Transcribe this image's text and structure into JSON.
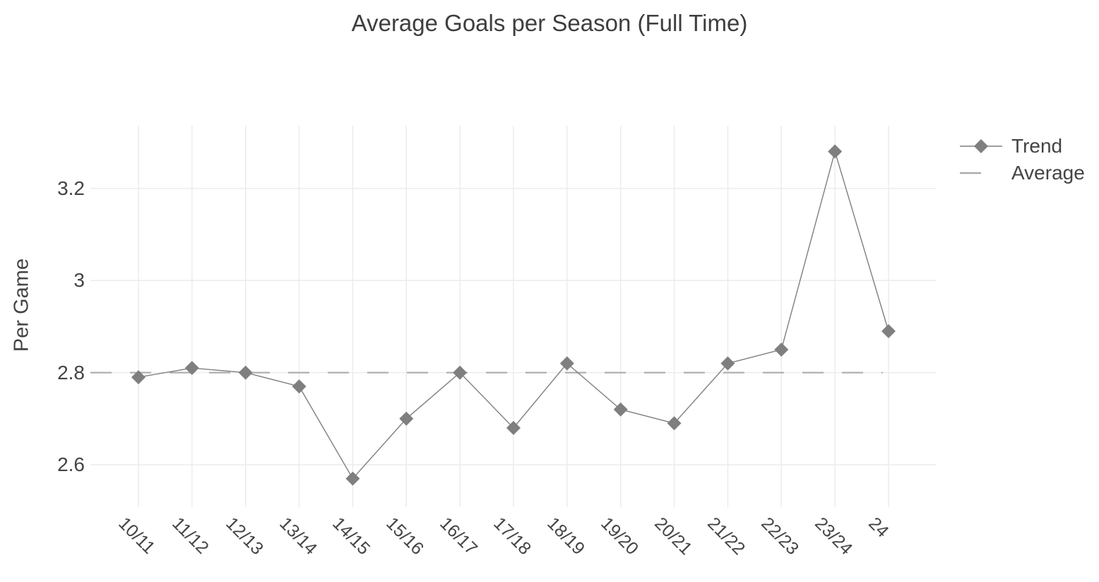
{
  "figure": {
    "background": "#ffffff",
    "text_color": "#444444",
    "title_color": "#3e3e3e",
    "grid_color": "#ebebeb"
  },
  "chart_data": {
    "type": "line",
    "title": "Average Goals per Season (Full Time)",
    "xlabel": "",
    "ylabel": "Per Game",
    "categories": [
      "10/11",
      "11/12",
      "12/13",
      "13/14",
      "14/15",
      "15/16",
      "16/17",
      "17/18",
      "18/19",
      "19/20",
      "20/21",
      "21/22",
      "22/23",
      "23/24",
      "24"
    ],
    "series": [
      {
        "name": "Trend",
        "type": "line+markers",
        "marker": "diamond",
        "color": "#7f7f7f",
        "values": [
          2.79,
          2.81,
          2.8,
          2.77,
          2.57,
          2.7,
          2.8,
          2.68,
          2.82,
          2.72,
          2.69,
          2.82,
          2.85,
          3.28,
          2.89
        ]
      },
      {
        "name": "Average",
        "type": "line",
        "dash": "long-dash",
        "color": "#ababab",
        "value": 2.8
      }
    ],
    "yticks": [
      {
        "label": "2.6",
        "value": 2.6
      },
      {
        "label": "2.8",
        "value": 2.8
      },
      {
        "label": "3",
        "value": 3.0
      },
      {
        "label": "3.2",
        "value": 3.2
      }
    ],
    "ylim": [
      2.508,
      3.336
    ],
    "grid": true,
    "legend_position": "right-top"
  }
}
